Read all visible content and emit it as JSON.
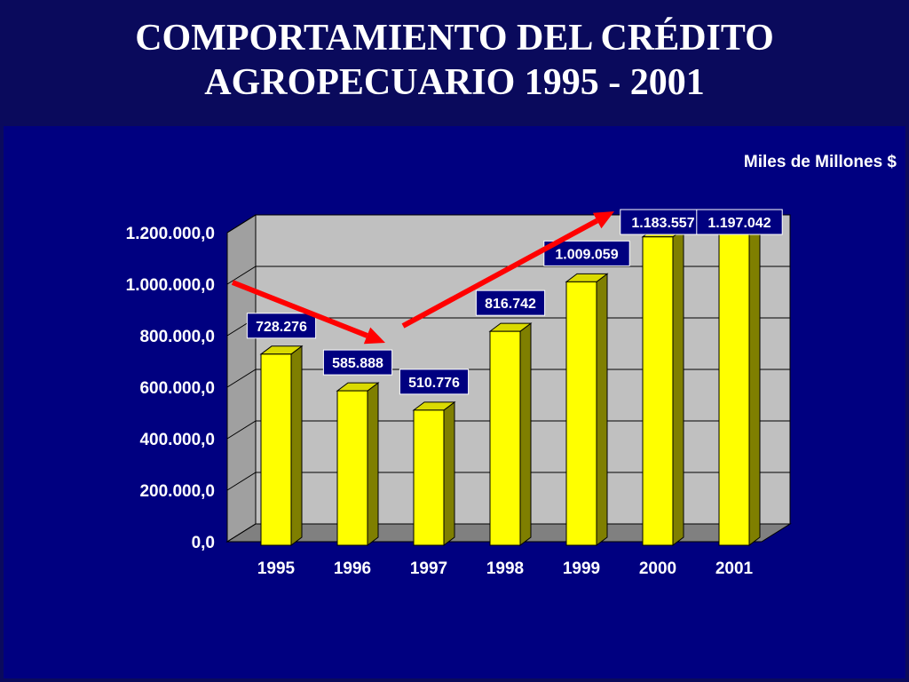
{
  "title": {
    "line1": "COMPORTAMIENTO DEL CRÉDITO",
    "line2": "AGROPECUARIO 1995 - 2001"
  },
  "colors": {
    "background": "#0a0a5c",
    "panel": "#000080",
    "plot_wall": "#c0c0c0",
    "bar_front": "#ffff00",
    "bar_side": "#7f7f00",
    "arrow": "#ff0000",
    "label_box": "#000080"
  },
  "chart_data": {
    "type": "bar",
    "title": "COMPORTAMIENTO DEL CRÉDITO AGROPECUARIO 1995 - 2001",
    "units": "Miles de Millones $",
    "categories": [
      "1995",
      "1996",
      "1997",
      "1998",
      "1999",
      "2000",
      "2001"
    ],
    "values": [
      728276,
      585888,
      510776,
      816742,
      1009059,
      1183557,
      1197042
    ],
    "data_labels": [
      "728.276",
      "585.888",
      "510.776",
      "816.742",
      "1.009.059",
      "1.183.557",
      "1.197.042"
    ],
    "y_ticks": [
      0,
      200000,
      400000,
      600000,
      800000,
      1000000,
      1200000
    ],
    "y_tick_labels": [
      "0,0",
      "200.000,0",
      "400.000,0",
      "600.000,0",
      "800.000,0",
      "1.000.000,0",
      "1.200.000,0"
    ],
    "ylim": [
      0,
      1200000
    ],
    "grid": true,
    "legend": "none",
    "three_d": true,
    "annotations": [
      {
        "type": "arrow",
        "from_category": "1995",
        "to_category": "1997",
        "direction": "down"
      },
      {
        "type": "arrow",
        "from_category": "1997",
        "to_category": "2000",
        "direction": "up"
      }
    ]
  }
}
